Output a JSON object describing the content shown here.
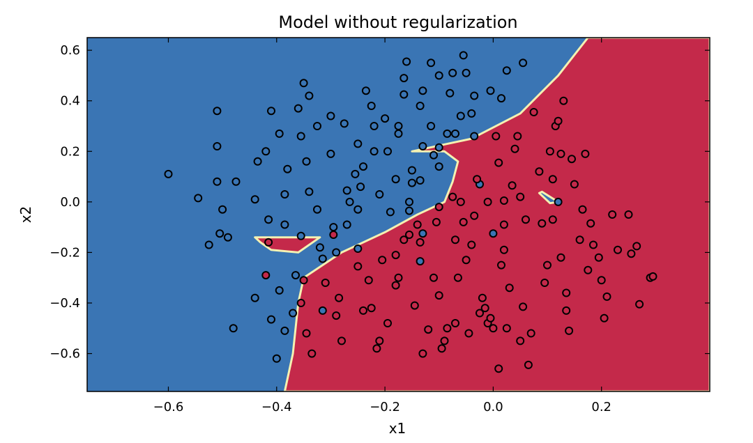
{
  "chart_data": {
    "type": "scatter",
    "title": "Model without regularization",
    "xlabel": "x1",
    "ylabel": "x2",
    "xlim": [
      -0.75,
      0.4
    ],
    "ylim": [
      -0.75,
      0.65
    ],
    "x_ticks": [
      -0.6,
      -0.4,
      -0.2,
      0.0,
      0.2
    ],
    "x_tick_labels": [
      "−0.6",
      "−0.4",
      "−0.2",
      "0.0",
      "0.2"
    ],
    "y_ticks": [
      0.6,
      0.4,
      0.2,
      0.0,
      -0.2,
      -0.4,
      -0.6
    ],
    "y_tick_labels": [
      "0.6",
      "0.4",
      "0.2",
      "0.0",
      "−0.2",
      "−0.4",
      "−0.6"
    ],
    "grid": false,
    "legend": "none",
    "colors": {
      "class_0": "#3a75b4",
      "class_1": "#c4294a",
      "boundary": "#f4f1b2",
      "marker_edge": "#000000"
    },
    "decision_regions": {
      "class_1_region": [
        [
          -0.385,
          -0.75
        ],
        [
          -0.37,
          -0.6
        ],
        [
          -0.36,
          -0.4
        ],
        [
          -0.35,
          -0.3
        ],
        [
          -0.28,
          -0.2
        ],
        [
          -0.2,
          -0.12
        ],
        [
          -0.14,
          -0.05
        ],
        [
          -0.09,
          0.0
        ],
        [
          -0.075,
          0.08
        ],
        [
          -0.065,
          0.16
        ],
        [
          -0.09,
          0.2
        ],
        [
          -0.15,
          0.2
        ],
        [
          -0.04,
          0.25
        ],
        [
          0.05,
          0.35
        ],
        [
          0.12,
          0.5
        ],
        [
          0.175,
          0.65
        ],
        [
          0.4,
          0.65
        ],
        [
          0.4,
          -0.75
        ]
      ],
      "class_1_island": [
        [
          -0.44,
          -0.14
        ],
        [
          -0.32,
          -0.14
        ],
        [
          -0.36,
          -0.2
        ],
        [
          -0.41,
          -0.19
        ],
        [
          -0.43,
          -0.16
        ]
      ],
      "class_0_island": [
        [
          0.09,
          0.04
        ],
        [
          0.12,
          0.0
        ],
        [
          0.105,
          -0.005
        ],
        [
          0.085,
          0.035
        ]
      ]
    },
    "series": [
      {
        "class": 0,
        "points": [
          [
            -0.6,
            0.11
          ],
          [
            -0.545,
            0.015
          ],
          [
            -0.525,
            -0.17
          ],
          [
            -0.51,
            0.36
          ],
          [
            -0.51,
            0.22
          ],
          [
            -0.51,
            0.08
          ],
          [
            -0.5,
            -0.03
          ],
          [
            -0.505,
            -0.125
          ],
          [
            -0.49,
            -0.14
          ],
          [
            -0.475,
            0.08
          ],
          [
            -0.48,
            -0.5
          ],
          [
            -0.44,
            0.01
          ],
          [
            -0.435,
            0.16
          ],
          [
            -0.44,
            -0.38
          ],
          [
            -0.42,
            0.2
          ],
          [
            -0.41,
            0.36
          ],
          [
            -0.415,
            -0.07
          ],
          [
            -0.41,
            -0.465
          ],
          [
            -0.395,
            0.27
          ],
          [
            -0.395,
            -0.35
          ],
          [
            -0.4,
            -0.62
          ],
          [
            -0.385,
            0.03
          ],
          [
            -0.38,
            0.13
          ],
          [
            -0.385,
            -0.09
          ],
          [
            -0.385,
            -0.51
          ],
          [
            -0.37,
            -0.44
          ],
          [
            -0.365,
            -0.29
          ],
          [
            -0.36,
            0.37
          ],
          [
            -0.355,
            0.26
          ],
          [
            -0.355,
            -0.135
          ],
          [
            -0.35,
            0.47
          ],
          [
            -0.345,
            0.16
          ],
          [
            -0.34,
            0.42
          ],
          [
            -0.34,
            0.04
          ],
          [
            -0.325,
            0.3
          ],
          [
            -0.325,
            -0.03
          ],
          [
            -0.32,
            -0.18
          ],
          [
            -0.315,
            -0.225
          ],
          [
            -0.315,
            -0.43
          ],
          [
            -0.3,
            0.34
          ],
          [
            -0.3,
            0.19
          ],
          [
            -0.295,
            -0.1
          ],
          [
            -0.29,
            -0.2
          ],
          [
            -0.275,
            0.31
          ],
          [
            -0.27,
            0.045
          ],
          [
            -0.27,
            -0.09
          ],
          [
            -0.265,
            0.0
          ],
          [
            -0.255,
            0.11
          ],
          [
            -0.25,
            0.23
          ],
          [
            -0.245,
            0.06
          ],
          [
            -0.25,
            -0.03
          ],
          [
            -0.25,
            -0.185
          ],
          [
            -0.24,
            0.14
          ],
          [
            -0.235,
            0.44
          ],
          [
            -0.225,
            0.38
          ],
          [
            -0.22,
            0.3
          ],
          [
            -0.22,
            0.2
          ],
          [
            -0.21,
            0.03
          ],
          [
            -0.2,
            0.33
          ],
          [
            -0.195,
            0.2
          ],
          [
            -0.19,
            -0.04
          ],
          [
            -0.18,
            0.09
          ],
          [
            -0.175,
            0.27
          ],
          [
            -0.175,
            0.3
          ],
          [
            -0.165,
            0.49
          ],
          [
            -0.165,
            0.425
          ],
          [
            -0.16,
            0.555
          ],
          [
            -0.155,
            -0.035
          ],
          [
            -0.155,
            0.0
          ],
          [
            -0.15,
            0.125
          ],
          [
            -0.15,
            0.075
          ],
          [
            -0.135,
            0.085
          ],
          [
            -0.135,
            0.38
          ],
          [
            -0.13,
            0.44
          ],
          [
            -0.13,
            0.22
          ],
          [
            -0.13,
            -0.125
          ],
          [
            -0.115,
            0.55
          ],
          [
            -0.115,
            0.3
          ],
          [
            -0.11,
            0.185
          ],
          [
            -0.1,
            0.215
          ],
          [
            -0.1,
            0.5
          ],
          [
            -0.1,
            0.14
          ],
          [
            -0.085,
            0.27
          ],
          [
            -0.08,
            0.43
          ],
          [
            -0.075,
            0.51
          ],
          [
            -0.07,
            0.27
          ],
          [
            -0.06,
            0.34
          ],
          [
            -0.055,
            0.58
          ],
          [
            -0.05,
            0.51
          ],
          [
            -0.04,
            0.35
          ],
          [
            -0.035,
            0.42
          ],
          [
            -0.035,
            0.26
          ],
          [
            -0.025,
            0.07
          ],
          [
            -0.005,
            0.44
          ],
          [
            0.015,
            0.41
          ],
          [
            0.025,
            0.52
          ],
          [
            0.055,
            0.55
          ],
          [
            0.0,
            -0.125
          ],
          [
            0.12,
            0.0
          ],
          [
            -0.135,
            -0.235
          ]
        ]
      },
      {
        "class": 1,
        "points": [
          [
            -0.415,
            -0.16
          ],
          [
            -0.355,
            -0.4
          ],
          [
            -0.35,
            -0.31
          ],
          [
            -0.345,
            -0.52
          ],
          [
            -0.335,
            -0.6
          ],
          [
            -0.31,
            -0.32
          ],
          [
            -0.295,
            -0.13
          ],
          [
            -0.29,
            -0.45
          ],
          [
            -0.285,
            -0.38
          ],
          [
            -0.28,
            -0.55
          ],
          [
            -0.25,
            -0.255
          ],
          [
            -0.24,
            -0.43
          ],
          [
            -0.23,
            -0.31
          ],
          [
            -0.225,
            -0.42
          ],
          [
            -0.215,
            -0.58
          ],
          [
            -0.21,
            -0.55
          ],
          [
            -0.205,
            -0.23
          ],
          [
            -0.195,
            -0.48
          ],
          [
            -0.18,
            -0.33
          ],
          [
            -0.175,
            -0.3
          ],
          [
            -0.165,
            -0.15
          ],
          [
            -0.155,
            -0.13
          ],
          [
            -0.145,
            -0.41
          ],
          [
            -0.14,
            -0.09
          ],
          [
            -0.135,
            -0.16
          ],
          [
            -0.13,
            -0.6
          ],
          [
            -0.12,
            -0.505
          ],
          [
            -0.11,
            -0.3
          ],
          [
            -0.105,
            -0.08
          ],
          [
            -0.1,
            -0.37
          ],
          [
            -0.095,
            -0.58
          ],
          [
            -0.09,
            -0.55
          ],
          [
            -0.085,
            -0.5
          ],
          [
            -0.075,
            0.02
          ],
          [
            -0.07,
            -0.15
          ],
          [
            -0.07,
            -0.48
          ],
          [
            -0.065,
            -0.3
          ],
          [
            -0.06,
            0.0
          ],
          [
            -0.055,
            -0.08
          ],
          [
            -0.05,
            -0.23
          ],
          [
            -0.045,
            -0.52
          ],
          [
            -0.04,
            -0.17
          ],
          [
            -0.035,
            -0.055
          ],
          [
            -0.03,
            0.09
          ],
          [
            -0.025,
            -0.44
          ],
          [
            -0.02,
            -0.38
          ],
          [
            -0.015,
            -0.42
          ],
          [
            -0.01,
            -0.48
          ],
          [
            -0.005,
            -0.46
          ],
          [
            0.0,
            -0.5
          ],
          [
            0.005,
            0.26
          ],
          [
            -0.01,
            0.0
          ],
          [
            0.01,
            -0.66
          ],
          [
            0.01,
            0.155
          ],
          [
            0.015,
            -0.25
          ],
          [
            0.02,
            -0.09
          ],
          [
            0.02,
            -0.19
          ],
          [
            0.025,
            -0.5
          ],
          [
            0.03,
            -0.34
          ],
          [
            0.035,
            0.065
          ],
          [
            0.04,
            0.21
          ],
          [
            0.045,
            0.26
          ],
          [
            0.05,
            0.02
          ],
          [
            0.05,
            -0.55
          ],
          [
            0.055,
            -0.415
          ],
          [
            0.06,
            -0.07
          ],
          [
            0.065,
            -0.645
          ],
          [
            0.07,
            -0.52
          ],
          [
            0.075,
            0.355
          ],
          [
            0.085,
            0.12
          ],
          [
            0.09,
            -0.085
          ],
          [
            0.095,
            -0.32
          ],
          [
            0.1,
            -0.25
          ],
          [
            0.105,
            0.2
          ],
          [
            0.11,
            0.09
          ],
          [
            0.11,
            -0.07
          ],
          [
            0.115,
            0.3
          ],
          [
            0.12,
            0.32
          ],
          [
            0.125,
            0.19
          ],
          [
            0.125,
            -0.22
          ],
          [
            0.13,
            0.4
          ],
          [
            0.135,
            -0.36
          ],
          [
            0.135,
            -0.43
          ],
          [
            0.14,
            -0.51
          ],
          [
            0.145,
            0.17
          ],
          [
            0.15,
            0.07
          ],
          [
            0.16,
            -0.15
          ],
          [
            0.165,
            -0.03
          ],
          [
            0.17,
            0.19
          ],
          [
            0.175,
            -0.27
          ],
          [
            0.18,
            -0.085
          ],
          [
            0.185,
            -0.17
          ],
          [
            0.195,
            -0.22
          ],
          [
            0.2,
            -0.31
          ],
          [
            0.205,
            -0.46
          ],
          [
            0.21,
            -0.375
          ],
          [
            0.22,
            -0.05
          ],
          [
            0.23,
            -0.19
          ],
          [
            0.25,
            -0.05
          ],
          [
            0.255,
            -0.205
          ],
          [
            0.265,
            -0.175
          ],
          [
            0.27,
            -0.405
          ],
          [
            0.29,
            -0.3
          ],
          [
            0.295,
            -0.295
          ],
          [
            -0.42,
            -0.29
          ],
          [
            -0.1,
            -0.02
          ],
          [
            0.02,
            0.005
          ],
          [
            -0.18,
            -0.21
          ]
        ]
      }
    ]
  }
}
